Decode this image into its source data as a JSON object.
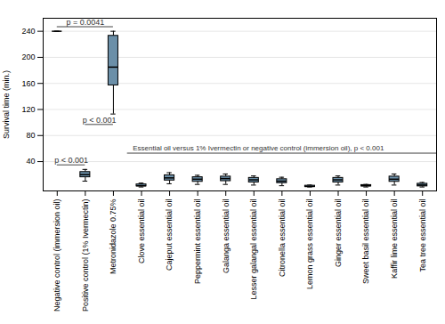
{
  "chart_data": {
    "type": "box",
    "categories": [
      "Negative control (immersion oil)",
      "Positive control (1% Ivermectin)",
      "Metronidazole 0.75%",
      "Clove essential oil",
      "Cajeput essential oil",
      "Peppermint essential oil",
      "Galanga essential oil",
      "Lesser galangal essential oil",
      "Citronella essential oil",
      "Lemon grass essential oil",
      "Ginger essential oil",
      "Sweet basil essential oil",
      "Kaffir lime essential oil",
      "Tea tree essential oil"
    ],
    "boxes": [
      {
        "q1": 240,
        "median": 240,
        "q3": 240,
        "whislo": 240,
        "whishi": 240
      },
      {
        "q1": 16,
        "median": 20,
        "q3": 24,
        "whislo": 10,
        "whishi": 28
      },
      {
        "q1": 157,
        "median": 185,
        "q3": 233,
        "whislo": 113,
        "whishi": 240
      },
      {
        "q1": 2,
        "median": 3,
        "q3": 5,
        "whislo": 1,
        "whishi": 7
      },
      {
        "q1": 11,
        "median": 15,
        "q3": 19,
        "whislo": 6,
        "whishi": 23
      },
      {
        "q1": 9,
        "median": 13,
        "q3": 16,
        "whislo": 5,
        "whishi": 19
      },
      {
        "q1": 10,
        "median": 14,
        "q3": 17,
        "whislo": 5,
        "whishi": 21
      },
      {
        "q1": 8,
        "median": 12,
        "q3": 15,
        "whislo": 4,
        "whishi": 18
      },
      {
        "q1": 7,
        "median": 10,
        "q3": 13,
        "whislo": 3,
        "whishi": 16
      },
      {
        "q1": 1,
        "median": 2,
        "q3": 3,
        "whislo": 1,
        "whishi": 4
      },
      {
        "q1": 8,
        "median": 12,
        "q3": 15,
        "whislo": 4,
        "whishi": 18
      },
      {
        "q1": 2,
        "median": 3,
        "q3": 4,
        "whislo": 1,
        "whishi": 5
      },
      {
        "q1": 9,
        "median": 13,
        "q3": 17,
        "whislo": 4,
        "whishi": 21
      },
      {
        "q1": 2,
        "median": 4,
        "q3": 6,
        "whislo": 1,
        "whishi": 8
      }
    ],
    "color": "#6b8fa8",
    "ylabel": "Survival time (min.)",
    "ylim": [
      -5,
      260
    ],
    "yticks": [
      40,
      80,
      120,
      160,
      200,
      240
    ],
    "grid": true,
    "annotations": [
      {
        "text": "p = 0.0041",
        "x1": 1,
        "x2": 3,
        "y": 247
      },
      {
        "text": "p < 0.001",
        "x1": 2,
        "x2": 3,
        "y": 97
      },
      {
        "text": "p < 0.001",
        "x1": 1,
        "x2": 2,
        "y": 35
      }
    ],
    "bracket": {
      "text": "Essential oil versus 1% Ivermectin or negative control (immersion oil), p < 0.001",
      "x1": 3.5,
      "x2": 14.5,
      "y": 53
    }
  }
}
